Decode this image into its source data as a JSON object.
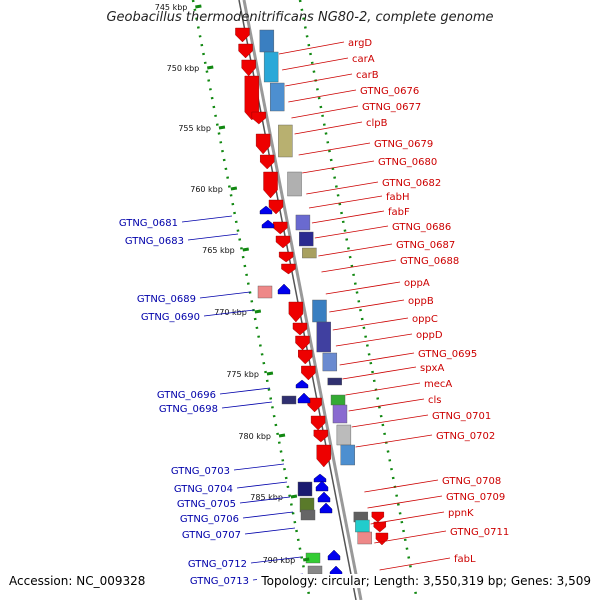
{
  "title": "Geobacillus thermodenitrificans NG80-2, complete genome",
  "accession": "Accession: NC_009328",
  "stats": "Topology: circular; Length: 3,550,319 bp; Genes: 3,509",
  "colors": {
    "forward_label": "#cc0000",
    "reverse_label": "#0000aa",
    "backbone": "#999999",
    "gene_forward": "#ee0000",
    "gene_reverse": "#0000ee",
    "gc_track": "#118811"
  },
  "ticks": [
    "745 kbp",
    "750 kbp",
    "755 kbp",
    "760 kbp",
    "765 kbp",
    "770 kbp",
    "775 kbp",
    "780 kbp",
    "785 kbp",
    "790 kbp"
  ],
  "forward_genes": [
    "argD",
    "carA",
    "carB",
    "GTNG_0676",
    "GTNG_0677",
    "clpB",
    "GTNG_0679",
    "GTNG_0680",
    "GTNG_0682",
    "fabH",
    "fabF",
    "GTNG_0686",
    "GTNG_0687",
    "GTNG_0688",
    "oppA",
    "oppB",
    "oppC",
    "oppD",
    "GTNG_0695",
    "spxA",
    "mecA",
    "cls",
    "GTNG_0701",
    "GTNG_0702",
    "GTNG_0708",
    "GTNG_0709",
    "ppnK",
    "GTNG_0711",
    "fabL"
  ],
  "reverse_genes": [
    "GTNG_0681",
    "GTNG_0683",
    "GTNG_0689",
    "GTNG_0690",
    "GTNG_0696",
    "GTNG_0698",
    "GTNG_0703",
    "GTNG_0704",
    "GTNG_0705",
    "GTNG_0706",
    "GTNG_0707",
    "GTNG_0712",
    "GTNG_0713"
  ]
}
